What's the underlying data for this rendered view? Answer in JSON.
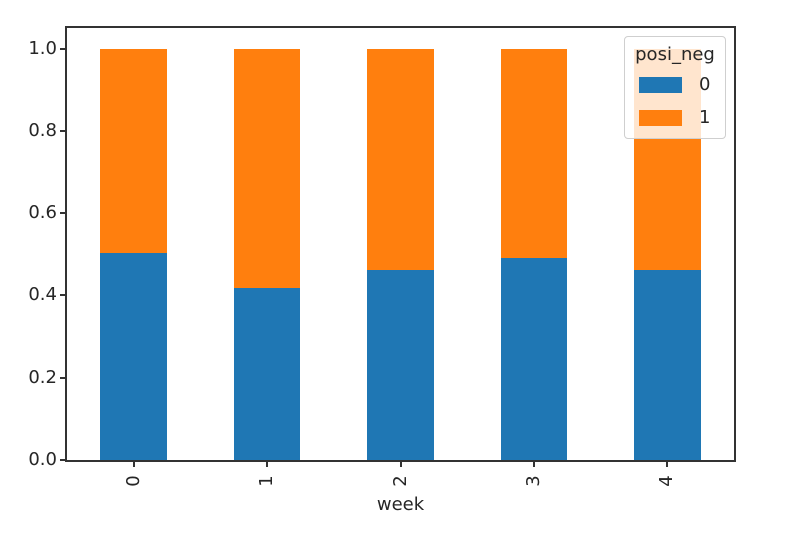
{
  "chart_data": {
    "type": "bar",
    "stacked": true,
    "title": "",
    "xlabel": "week",
    "ylabel": "",
    "categories": [
      "0",
      "1",
      "2",
      "3",
      "4"
    ],
    "series": [
      {
        "name": "0",
        "color": "#1f77b4",
        "values": [
          0.503,
          0.418,
          0.462,
          0.492,
          0.462
        ]
      },
      {
        "name": "1",
        "color": "#ff7f0e",
        "values": [
          0.497,
          0.582,
          0.538,
          0.508,
          0.538
        ]
      }
    ],
    "ylim": [
      0,
      1.05
    ],
    "yticks": [
      "0.0",
      "0.2",
      "0.4",
      "0.6",
      "0.8",
      "1.0"
    ],
    "grid": false,
    "bar_width_fraction": 0.5,
    "legend": {
      "title": "posi_neg",
      "position": "upper right",
      "entries": [
        {
          "label": "0",
          "color": "#1f77b4"
        },
        {
          "label": "1",
          "color": "#ff7f0e"
        }
      ]
    }
  },
  "colors": {
    "background": "#ffffff",
    "spine": "#333333",
    "text": "#262626",
    "legend_border": "#cfcfcf",
    "legend_background": "rgba(255,255,255,0.8)"
  }
}
